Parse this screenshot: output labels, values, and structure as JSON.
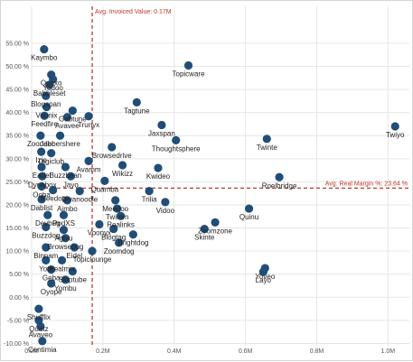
{
  "chart_data": {
    "type": "scatter",
    "xlim": [
      0,
      1060000
    ],
    "ylim": [
      -0.105,
      0.63
    ],
    "x_ticks": [
      0,
      200000,
      400000,
      600000,
      800000,
      1000000
    ],
    "x_tick_labels": [
      "0.0M",
      "0.2M",
      "0.4M",
      "0.6M",
      "0.8M",
      "1.0M"
    ],
    "y_ticks": [
      -0.1,
      -0.05,
      0.0,
      0.05,
      0.1,
      0.15,
      0.2,
      0.25,
      0.3,
      0.35,
      0.4,
      0.45,
      0.5,
      0.55
    ],
    "y_tick_labels": [
      "-10.00 %",
      "-5.00 %",
      "0.00 %",
      "5.00 %",
      "10.00 %",
      "15.00 %",
      "20.00 %",
      "25.00 %",
      "30.00 %",
      "35.00 %",
      "40.00 %",
      "45.00 %",
      "50.00 %",
      "55.00 %"
    ],
    "grid": true,
    "marker_color": "#1f4e79",
    "ref_line_color": "#c0392b",
    "reference_lines": {
      "x": {
        "value": 170000,
        "label": "Avg. Invoiced Value: 0.17M"
      },
      "y": {
        "value": 0.2364,
        "label": "Avg. Real Margin %: 23.64 %"
      }
    },
    "points": [
      {
        "label": "Kaymbo",
        "x": 35000,
        "y": 0.537
      },
      {
        "label": "Quaxo",
        "x": 55000,
        "y": 0.482
      },
      {
        "label": "Yodoo",
        "x": 60000,
        "y": 0.472
      },
      {
        "label": "Topicware",
        "x": 440000,
        "y": 0.502
      },
      {
        "label": "Babbleset",
        "x": 50000,
        "y": 0.46
      },
      {
        "label": "Blogspan",
        "x": 40000,
        "y": 0.436
      },
      {
        "label": "Voonix",
        "x": 42000,
        "y": 0.412
      },
      {
        "label": "Gabtune",
        "x": 115000,
        "y": 0.404
      },
      {
        "label": "Feedfire",
        "x": 36000,
        "y": 0.393
      },
      {
        "label": "Avavee",
        "x": 100000,
        "y": 0.39
      },
      {
        "label": "Trunyx",
        "x": 160000,
        "y": 0.392
      },
      {
        "label": "Tagtune",
        "x": 295000,
        "y": 0.422
      },
      {
        "label": "Jaxspan",
        "x": 365000,
        "y": 0.373
      },
      {
        "label": "Twiyo",
        "x": 1020000,
        "y": 0.37
      },
      {
        "label": "Zoonder",
        "x": 25000,
        "y": 0.35
      },
      {
        "label": "Jabbershere",
        "x": 80000,
        "y": 0.35
      },
      {
        "label": "Thoughtsphere",
        "x": 405000,
        "y": 0.34
      },
      {
        "label": "Twinte",
        "x": 660000,
        "y": 0.343
      },
      {
        "label": "Browsedrive",
        "x": 225000,
        "y": 0.325
      },
      {
        "label": "Izio",
        "x": 27000,
        "y": 0.315
      },
      {
        "label": "Digiclub",
        "x": 55000,
        "y": 0.312
      },
      {
        "label": "Avamm",
        "x": 160000,
        "y": 0.295
      },
      {
        "label": "Eadel",
        "x": 28000,
        "y": 0.282
      },
      {
        "label": "Buzzbean",
        "x": 95000,
        "y": 0.282
      },
      {
        "label": "Wikizz",
        "x": 255000,
        "y": 0.286
      },
      {
        "label": "Kwideo",
        "x": 355000,
        "y": 0.28
      },
      {
        "label": "Jayo",
        "x": 110000,
        "y": 0.262
      },
      {
        "label": "Dynabox",
        "x": 30000,
        "y": 0.262
      },
      {
        "label": "Quamba",
        "x": 205000,
        "y": 0.252
      },
      {
        "label": "Roelbridge",
        "x": 695000,
        "y": 0.26
      },
      {
        "label": "Ooba",
        "x": 28000,
        "y": 0.24
      },
      {
        "label": "Meedoo",
        "x": 60000,
        "y": 0.232
      },
      {
        "label": "Divanoodle",
        "x": 135000,
        "y": 0.23
      },
      {
        "label": "Trilia",
        "x": 330000,
        "y": 0.23
      },
      {
        "label": "Dablist",
        "x": 28000,
        "y": 0.212
      },
      {
        "label": "Aimbo",
        "x": 100000,
        "y": 0.21
      },
      {
        "label": "Meedoo",
        "x": 235000,
        "y": 0.21
      },
      {
        "label": "Vidoo",
        "x": 375000,
        "y": 0.206
      },
      {
        "label": "Twimm",
        "x": 240000,
        "y": 0.192
      },
      {
        "label": "Quinu",
        "x": 610000,
        "y": 0.192
      },
      {
        "label": "Devbug",
        "x": 45000,
        "y": 0.178
      },
      {
        "label": "PodXS",
        "x": 90000,
        "y": 0.178
      },
      {
        "label": "Realinks",
        "x": 250000,
        "y": 0.176
      },
      {
        "label": "Zoomzone",
        "x": 515000,
        "y": 0.162
      },
      {
        "label": "Voonyx",
        "x": 190000,
        "y": 0.158
      },
      {
        "label": "Blogtag",
        "x": 230000,
        "y": 0.148
      },
      {
        "label": "Buzzdog",
        "x": 40000,
        "y": 0.152
      },
      {
        "label": "Agivu",
        "x": 90000,
        "y": 0.146
      },
      {
        "label": "Skinte",
        "x": 485000,
        "y": 0.148
      },
      {
        "label": "Brightdog",
        "x": 285000,
        "y": 0.136
      },
      {
        "label": "Browsebug",
        "x": 95000,
        "y": 0.128
      },
      {
        "label": "Zoomdog",
        "x": 245000,
        "y": 0.118
      },
      {
        "label": "Binnam",
        "x": 40000,
        "y": 0.108
      },
      {
        "label": "Eidel",
        "x": 120000,
        "y": 0.108
      },
      {
        "label": "Topiclounge",
        "x": 170000,
        "y": 0.1
      },
      {
        "label": "Yotz",
        "x": 40000,
        "y": 0.08
      },
      {
        "label": "Realmix",
        "x": 85000,
        "y": 0.08
      },
      {
        "label": "Yoveo",
        "x": 655000,
        "y": 0.063
      },
      {
        "label": "Geba",
        "x": 55000,
        "y": 0.06
      },
      {
        "label": "Skiptube",
        "x": 115000,
        "y": 0.056
      },
      {
        "label": "Layo",
        "x": 650000,
        "y": 0.055
      },
      {
        "label": "Yombu",
        "x": 95000,
        "y": 0.038
      },
      {
        "label": "Oyope",
        "x": 55000,
        "y": 0.03
      },
      {
        "label": "Shufflix",
        "x": 20000,
        "y": -0.025
      },
      {
        "label": "Quatz",
        "x": 20000,
        "y": -0.05
      },
      {
        "label": "Avaveo",
        "x": 25000,
        "y": -0.063
      },
      {
        "label": "Centimia",
        "x": 30000,
        "y": -0.095
      }
    ]
  }
}
